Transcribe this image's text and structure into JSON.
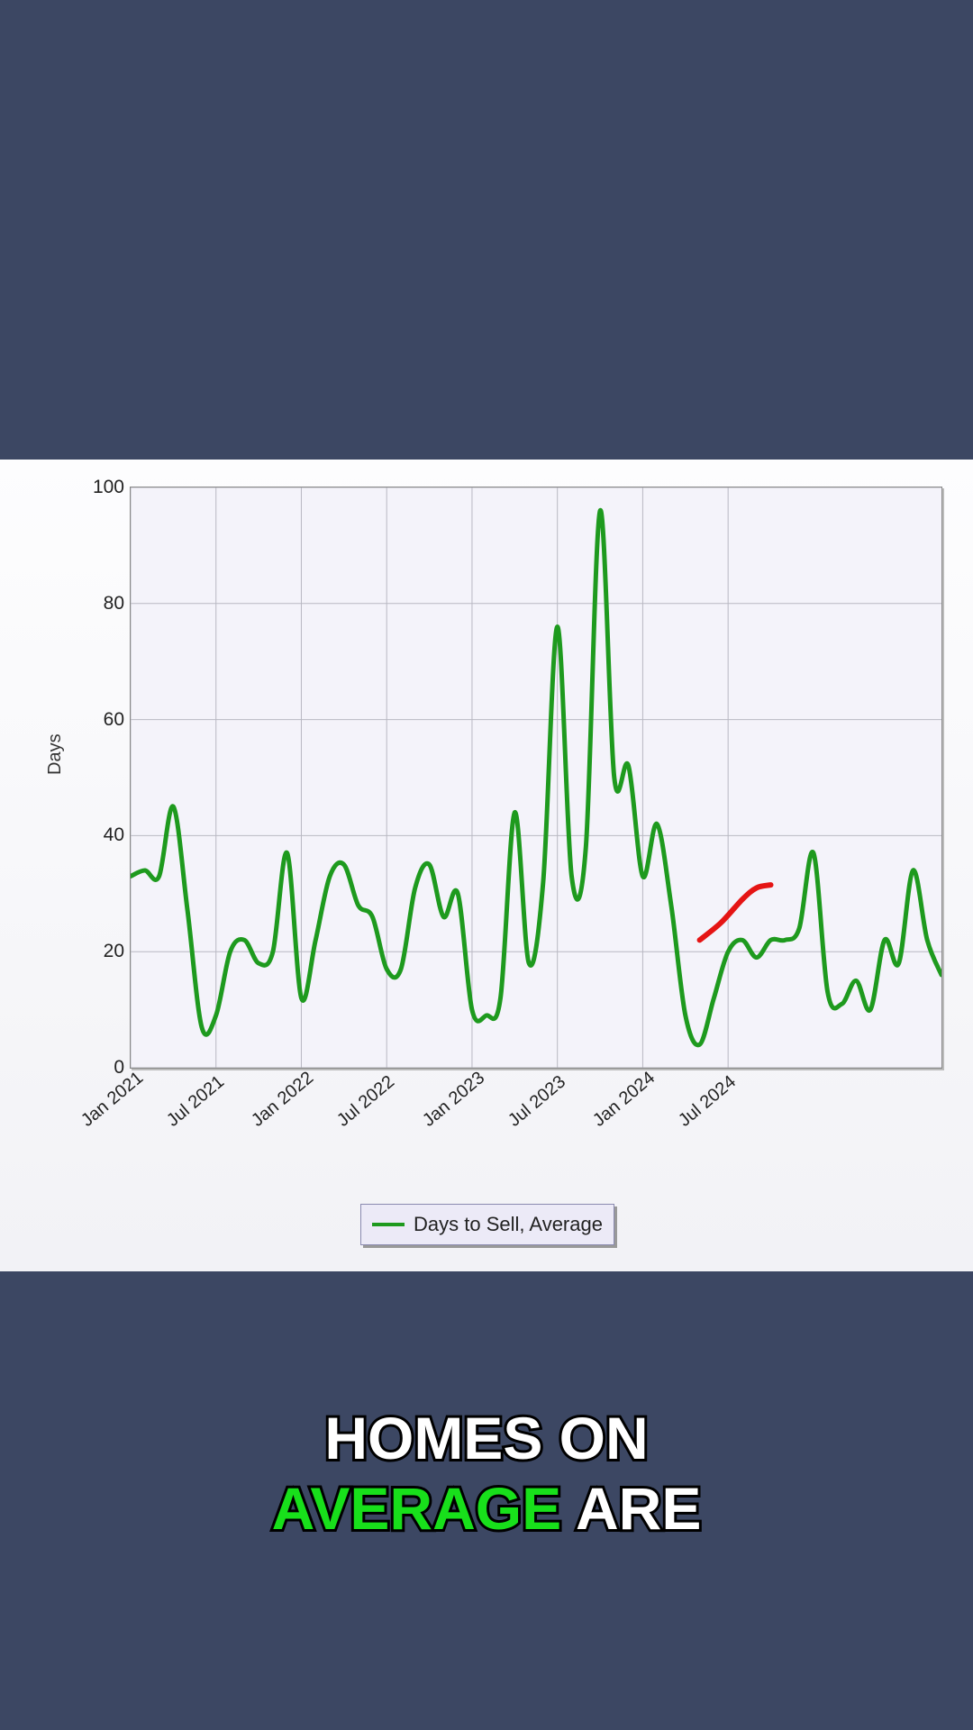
{
  "background_color": "#3c4763",
  "chart": {
    "type": "line",
    "panel_bg": "#f4f3fa",
    "panel_border": "#888888",
    "grid_color": "#b8b8c2",
    "series_color": "#1e9a1e",
    "series_line_width": 5,
    "annotation_color": "#e51414",
    "annotation_line_width": 6,
    "ylabel": "Days",
    "ylabel_fontsize": 20,
    "ylim": [
      0,
      100
    ],
    "ytick_step": 20,
    "yticks": [
      0,
      20,
      40,
      60,
      80,
      100
    ],
    "x_categories": [
      "Jan 2021",
      "Jul 2021",
      "Jan 2022",
      "Jul 2022",
      "Jan 2023",
      "Jul 2023",
      "Jan 2024",
      "Jul 2024"
    ],
    "x_major_index": [
      0,
      6,
      12,
      18,
      24,
      30,
      36,
      42
    ],
    "n_points": 46,
    "values": [
      33,
      34,
      33,
      45,
      27,
      7,
      9,
      20,
      22,
      18,
      20,
      37,
      12,
      22,
      33,
      35,
      28,
      26,
      17,
      17,
      31,
      35,
      26,
      30,
      10,
      9,
      12,
      44,
      18,
      32,
      76,
      33,
      38,
      96,
      50,
      52,
      33,
      42,
      28,
      9,
      4,
      12,
      20,
      22,
      19,
      22
    ],
    "annotation_points": [
      [
        40,
        22
      ],
      [
        41.5,
        25
      ],
      [
        43,
        29
      ],
      [
        44,
        31
      ],
      [
        45,
        31.5
      ]
    ],
    "tail_values_index_start": 45,
    "tail_values": [
      22,
      24,
      37,
      13,
      11,
      15,
      10,
      22,
      18,
      34,
      22,
      16
    ],
    "legend_label": "Days to Sell, Average",
    "legend_fontsize": 22
  },
  "caption": {
    "line1": "HOMES ON",
    "line2_word1": "AVERAGE",
    "line2_word2": "ARE",
    "fontsize": 66,
    "highlight_color": "#18e01b",
    "normal_color": "#ffffff",
    "stroke_color": "#000000"
  }
}
